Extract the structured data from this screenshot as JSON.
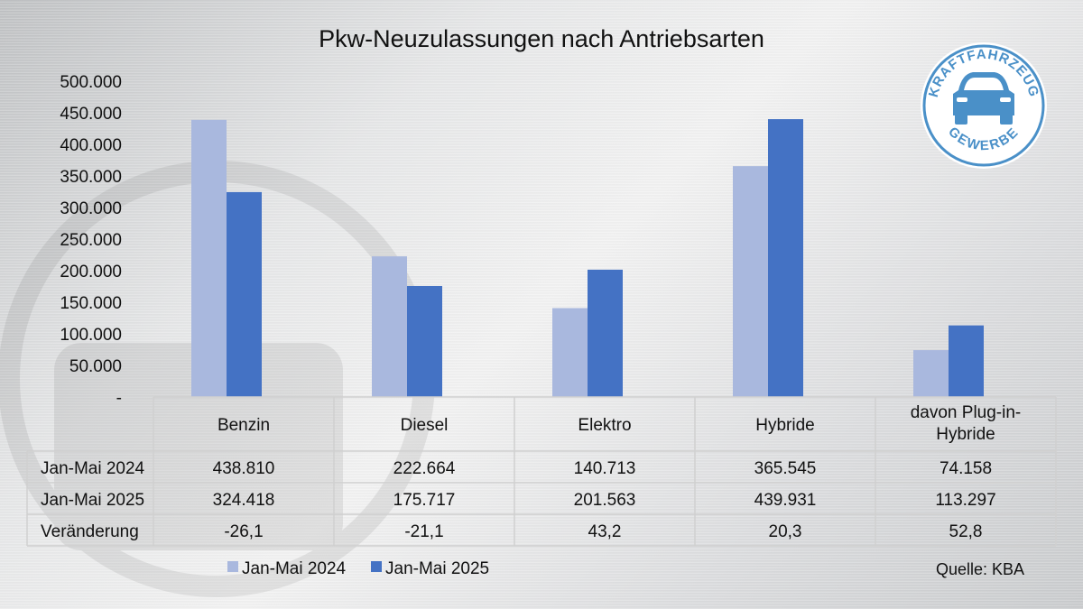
{
  "chart_data": {
    "type": "bar",
    "title": "Pkw-Neuzulassungen nach Antriebsarten",
    "categories": [
      "Benzin",
      "Diesel",
      "Elektro",
      "Hybride",
      [
        "davon Plug-in-",
        "Hybride"
      ]
    ],
    "series": [
      {
        "name": "Jan-Mai 2024",
        "values": [
          438810,
          222664,
          140713,
          365545,
          74158
        ],
        "labels": [
          "438.810",
          "222.664",
          "140.713",
          "365.545",
          "74.158"
        ],
        "color": "#a9b8de"
      },
      {
        "name": "Jan-Mai 2025",
        "values": [
          324418,
          175717,
          201563,
          439931,
          113297
        ],
        "labels": [
          "324.418",
          "175.717",
          "201.563",
          "439.931",
          "113.297"
        ],
        "color": "#4472c4"
      }
    ],
    "change_row": {
      "name": "Veränderung",
      "labels": [
        "-26,1",
        "-21,1",
        "43,2",
        "20,3",
        "52,8"
      ]
    },
    "ylim": [
      0,
      500000
    ],
    "yticks": [
      0,
      50000,
      100000,
      150000,
      200000,
      250000,
      300000,
      350000,
      400000,
      450000,
      500000
    ],
    "ytick_labels": [
      "-",
      "50.000",
      "100.000",
      "150.000",
      "200.000",
      "250.000",
      "300.000",
      "350.000",
      "400.000",
      "450.000",
      "500.000"
    ],
    "legend_position": "bottom",
    "grid": false
  },
  "source": "Quelle: KBA",
  "logo": {
    "top": "KRAFTFAHRZEUG",
    "bottom": "GEWERBE",
    "color": "#4a90c8"
  }
}
